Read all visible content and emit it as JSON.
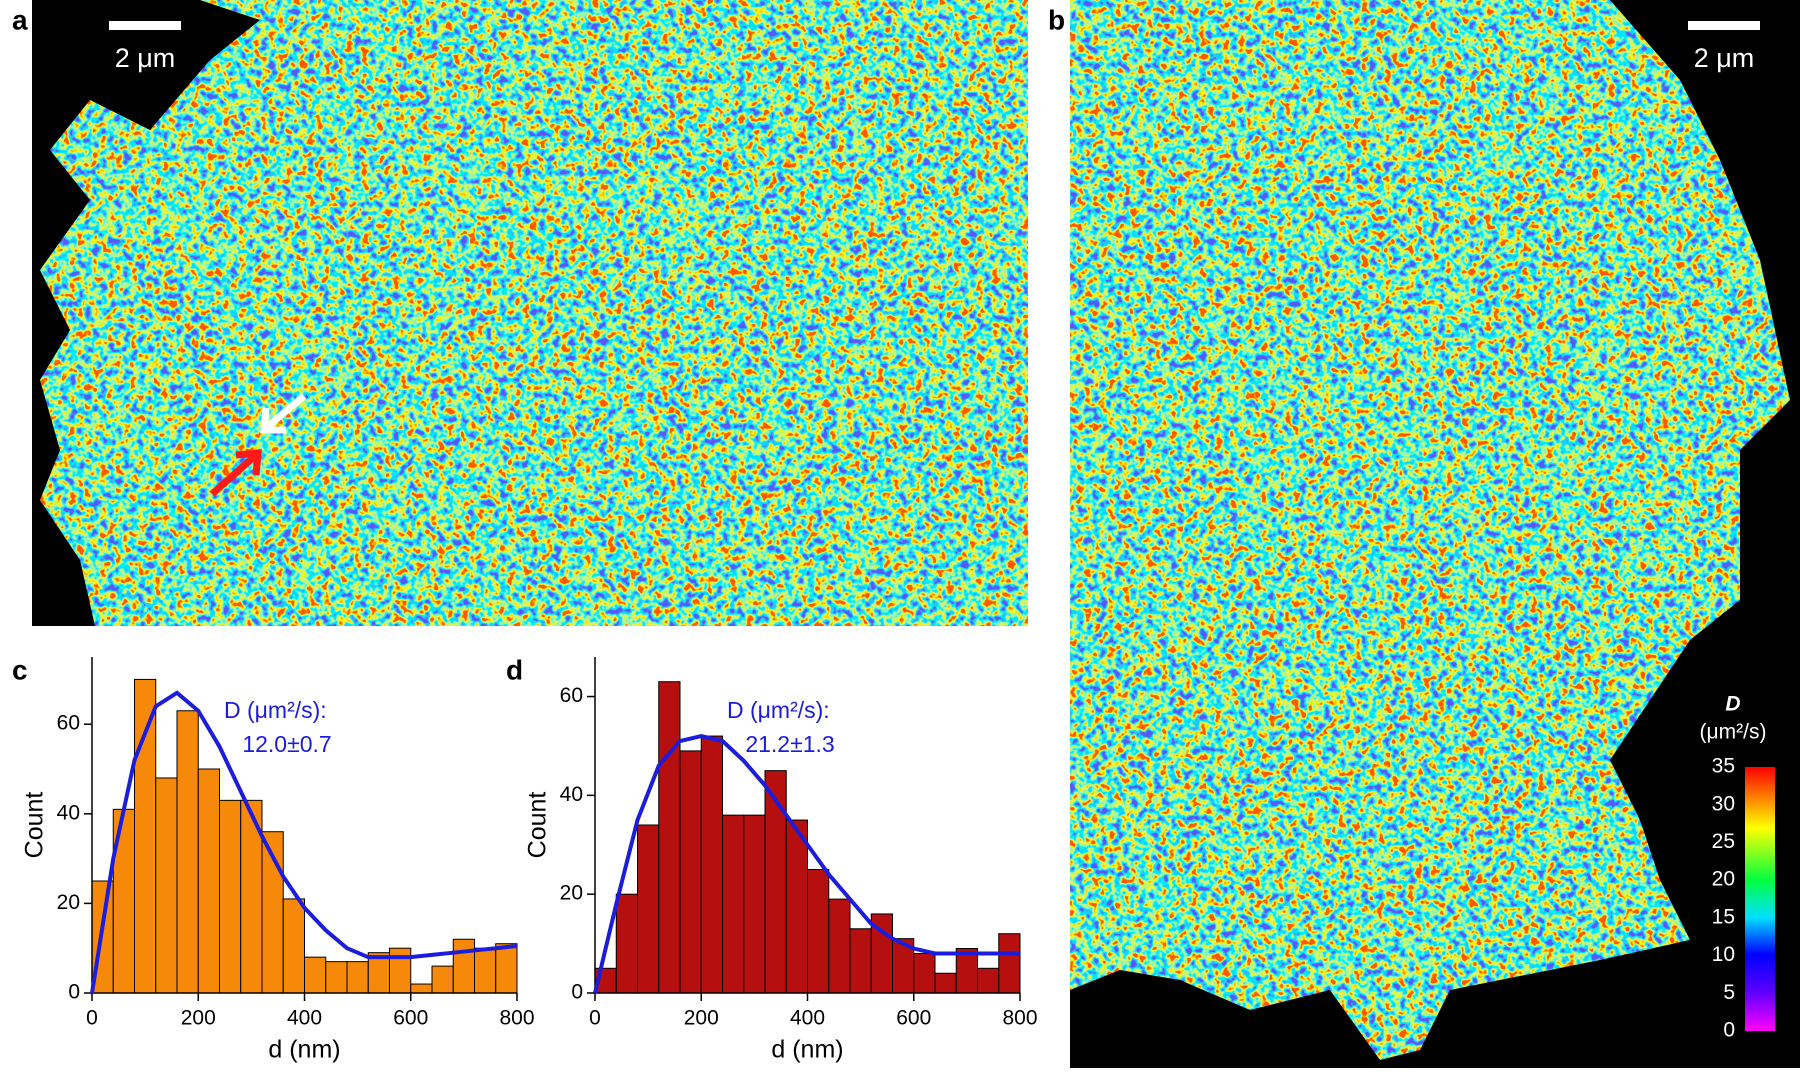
{
  "panels": {
    "a": {
      "label": "a",
      "scale_bar": "2 μm"
    },
    "b": {
      "label": "b",
      "scale_bar": "2 μm"
    },
    "c": {
      "label": "c"
    },
    "d": {
      "label": "d"
    }
  },
  "chart_data": [
    {
      "type": "histogram",
      "x_label": "d (nm)",
      "y_label": "Count",
      "color": "#f7890a",
      "bins": [
        0,
        40,
        80,
        120,
        160,
        200,
        240,
        280,
        320,
        360,
        400,
        440,
        480,
        520,
        560,
        600,
        640,
        680,
        720,
        760,
        800
      ],
      "values": [
        25,
        41,
        70,
        48,
        63,
        50,
        43,
        43,
        36,
        21,
        8,
        7,
        7,
        9,
        10,
        2,
        6,
        12,
        10,
        11
      ],
      "xlim": [
        0,
        800
      ],
      "xticks": [
        0,
        200,
        400,
        600,
        800
      ],
      "ylim": [
        0,
        75
      ],
      "yticks": [
        0,
        20,
        40,
        60
      ],
      "fit": {
        "color": "#1c1cdc",
        "x": [
          0,
          40,
          80,
          120,
          160,
          200,
          240,
          280,
          320,
          360,
          400,
          440,
          480,
          520,
          560,
          600,
          640,
          680,
          720,
          760,
          800
        ],
        "values": [
          0,
          30,
          52,
          64,
          67,
          63,
          55,
          45,
          35,
          26,
          19,
          14,
          10,
          8,
          8,
          8,
          8.5,
          9,
          9.5,
          10,
          10.5
        ]
      },
      "annotation": "D (μm²/s):",
      "annotation_value": "12.0±0.7"
    },
    {
      "type": "histogram",
      "x_label": "d (nm)",
      "y_label": "Count",
      "color": "#b50f0f",
      "bins": [
        0,
        40,
        80,
        120,
        160,
        200,
        240,
        280,
        320,
        360,
        400,
        440,
        480,
        520,
        560,
        600,
        640,
        680,
        720,
        760,
        800
      ],
      "values": [
        5,
        20,
        34,
        63,
        49,
        52,
        36,
        36,
        45,
        35,
        25,
        19,
        13,
        16,
        11,
        8,
        4,
        9,
        5,
        12
      ],
      "xlim": [
        0,
        800
      ],
      "xticks": [
        0,
        200,
        400,
        600,
        800
      ],
      "ylim": [
        0,
        68
      ],
      "yticks": [
        0,
        20,
        40,
        60
      ],
      "fit": {
        "color": "#1c1cdc",
        "x": [
          0,
          40,
          80,
          120,
          160,
          200,
          240,
          280,
          320,
          360,
          400,
          440,
          480,
          520,
          560,
          600,
          640,
          680,
          720,
          760,
          800
        ],
        "values": [
          0,
          18,
          35,
          46,
          51,
          52,
          51,
          47,
          42,
          36,
          30,
          24,
          19,
          14,
          11,
          9,
          8,
          8,
          8,
          8,
          8
        ]
      },
      "annotation": "D (μm²/s):",
      "annotation_value": "21.2±1.3"
    },
    {
      "type": "colorbar",
      "title": "D",
      "unit": "(μm²/s)",
      "ylim": [
        0,
        35
      ],
      "yticks": [
        0,
        5,
        10,
        15,
        20,
        25,
        30,
        35
      ]
    }
  ]
}
